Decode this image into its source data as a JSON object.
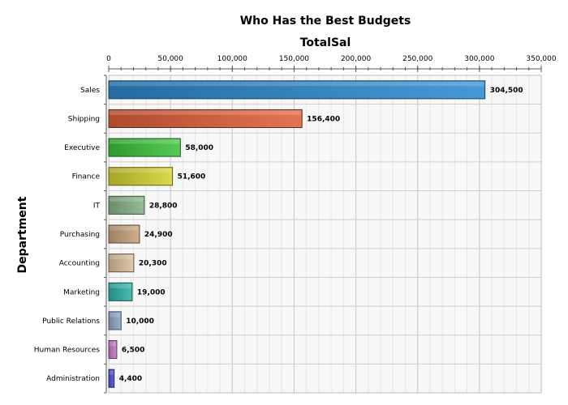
{
  "chart_data": {
    "type": "bar",
    "orientation": "horizontal",
    "title": "Who Has the Best Budgets",
    "subtitle": "TotalSal",
    "xlabel": "",
    "ylabel": "Department",
    "xlim": [
      0,
      350000
    ],
    "x_ticks": [
      0,
      50000,
      100000,
      150000,
      200000,
      250000,
      300000,
      350000
    ],
    "x_tick_labels": [
      "0",
      "50,000",
      "100,000",
      "150,000",
      "200,000",
      "250,000",
      "300,000",
      "350,000"
    ],
    "x_axis_position": "top",
    "grid": true,
    "legend": "none",
    "categories": [
      "Sales",
      "Shipping",
      "Executive",
      "Finance",
      "IT",
      "Purchasing",
      "Accounting",
      "Marketing",
      "Public Relations",
      "Human Resources",
      "Administration"
    ],
    "values": [
      304500,
      156400,
      58000,
      51600,
      28800,
      24900,
      20300,
      19000,
      10000,
      6500,
      4400
    ],
    "value_labels": [
      "304,500",
      "156,400",
      "58,000",
      "51,600",
      "28,800",
      "24,900",
      "20,300",
      "19,000",
      "10,000",
      "6,500",
      "4,400"
    ],
    "colors": [
      "#2e8bd0",
      "#e0603a",
      "#3cc43c",
      "#d4d432",
      "#86b486",
      "#c8a47c",
      "#dcc0a0",
      "#30b4a8",
      "#90a8c8",
      "#c878c8",
      "#5050d8"
    ]
  }
}
